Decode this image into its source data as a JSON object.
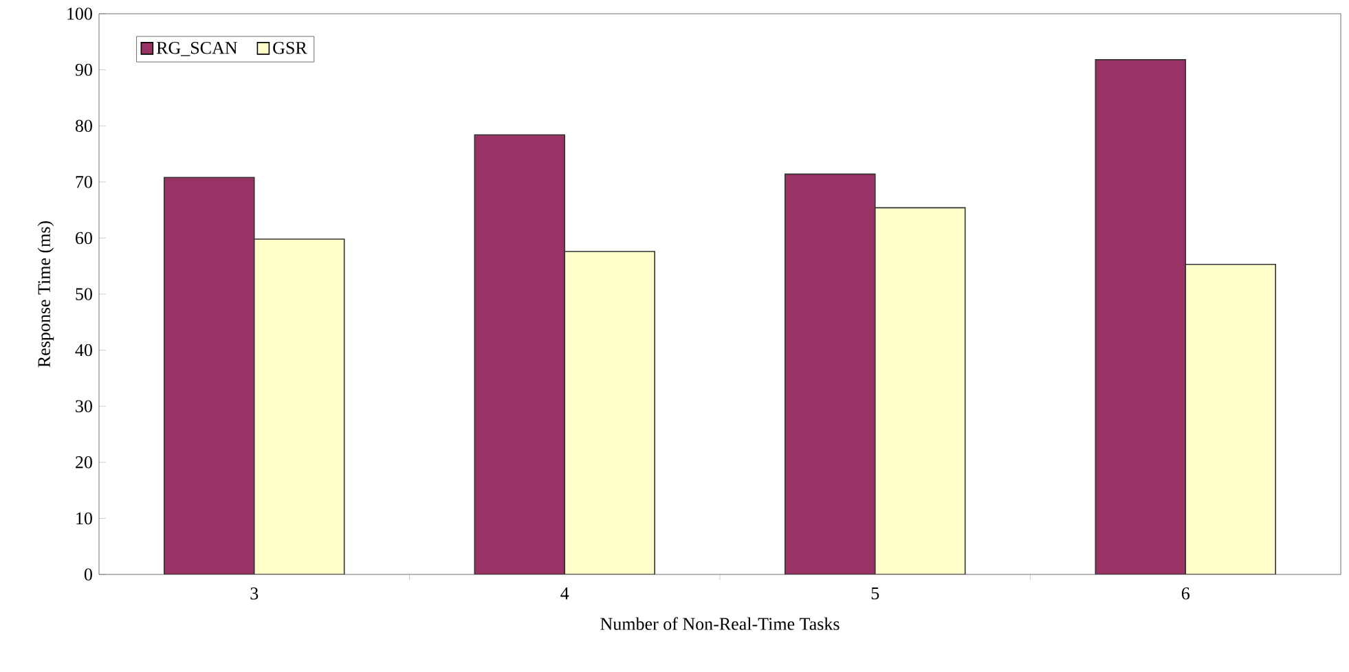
{
  "chart_data": {
    "type": "bar",
    "xlabel": "Number of Non-Real-Time Tasks",
    "ylabel": "Response Time (ms)",
    "categories": [
      "3",
      "4",
      "5",
      "6"
    ],
    "series": [
      {
        "name": "RG_SCAN",
        "color": "#993366",
        "values": [
          70.8,
          78.4,
          71.4,
          91.8
        ]
      },
      {
        "name": "GSR",
        "color": "#ffffcc",
        "values": [
          59.8,
          57.6,
          65.4,
          55.3
        ]
      }
    ],
    "ylim": [
      0,
      100
    ],
    "yticks": [
      0,
      10,
      20,
      30,
      40,
      50,
      60,
      70,
      80,
      90,
      100
    ],
    "legend": "top left",
    "grid": false
  }
}
